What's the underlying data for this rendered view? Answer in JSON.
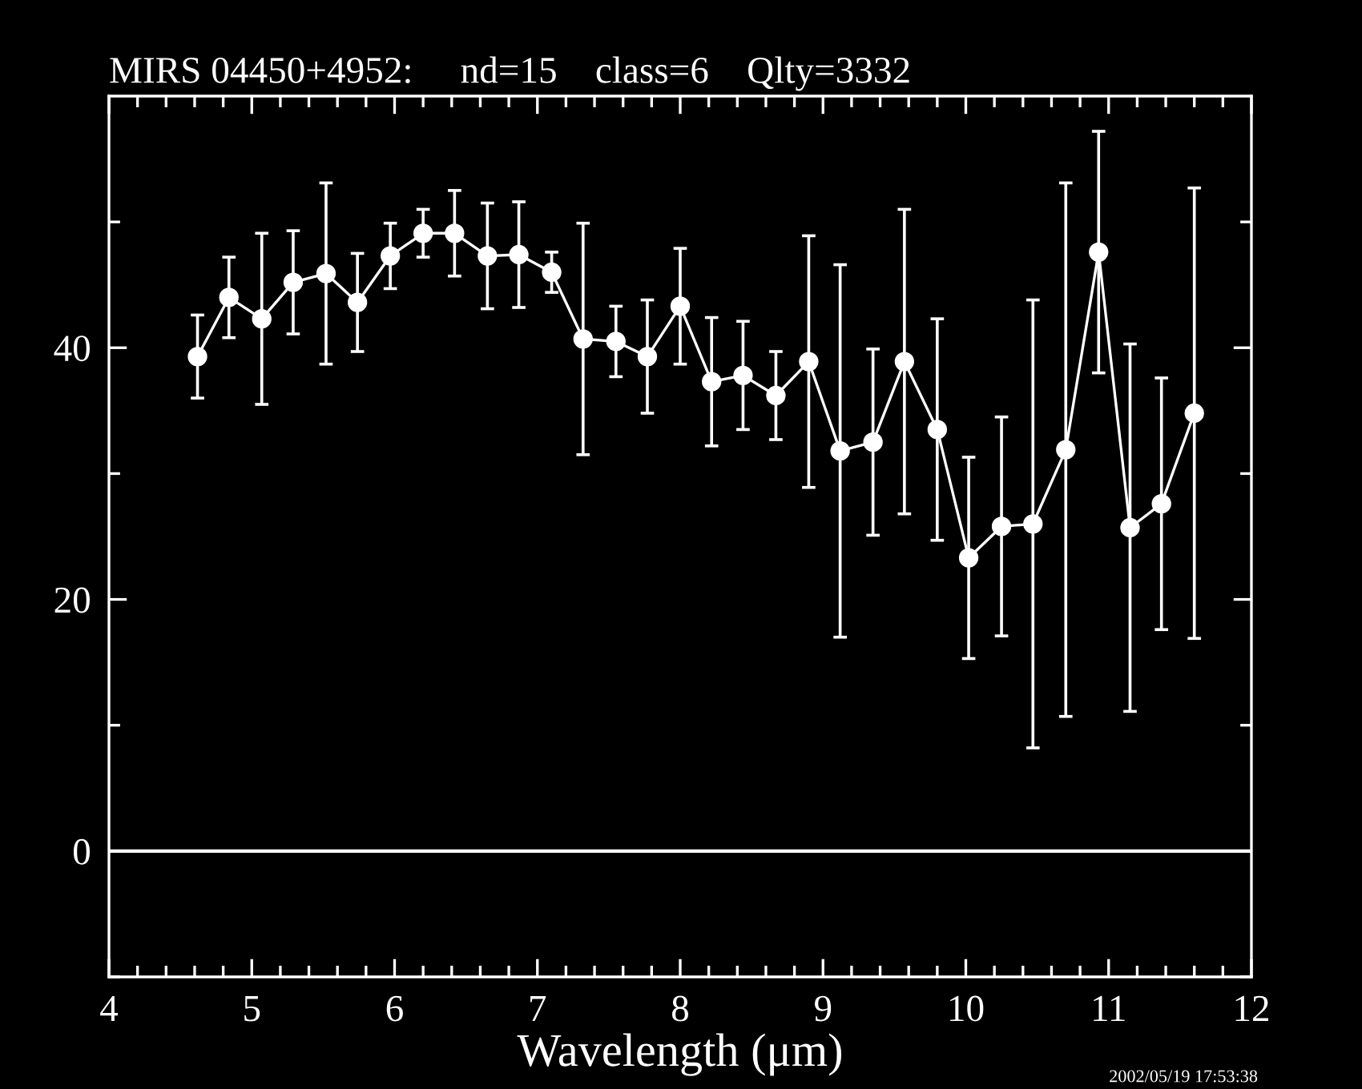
{
  "chart_data": {
    "type": "line",
    "title": "MIRS 04450+4952:     nd=15    class=6    Qlty=3332",
    "xlabel": "Wavelength (μm)",
    "x": [
      4.62,
      4.84,
      5.07,
      5.29,
      5.52,
      5.74,
      5.97,
      6.2,
      6.42,
      6.65,
      6.87,
      7.1,
      7.32,
      7.55,
      7.77,
      8.0,
      8.22,
      8.44,
      8.67,
      8.9,
      9.12,
      9.35,
      9.57,
      9.8,
      10.02,
      10.25,
      10.47,
      10.7,
      10.93,
      11.15,
      11.37,
      11.6
    ],
    "series": [
      {
        "color": "#ffffff",
        "values": [
          39.3,
          44.0,
          42.3,
          45.2,
          45.9,
          43.6,
          47.3,
          49.1,
          49.1,
          47.3,
          47.4,
          46.0,
          40.7,
          40.5,
          39.3,
          43.3,
          37.3,
          37.8,
          36.2,
          38.9,
          31.8,
          32.5,
          38.9,
          33.5,
          23.3,
          25.8,
          26.0,
          31.9,
          47.6,
          25.7,
          27.6,
          34.8
        ],
        "errors": [
          3.3,
          3.2,
          6.8,
          4.1,
          7.2,
          3.9,
          2.6,
          1.9,
          3.4,
          4.2,
          4.2,
          1.6,
          9.2,
          2.8,
          4.5,
          4.6,
          5.1,
          4.3,
          3.5,
          10.0,
          14.8,
          7.4,
          12.1,
          8.8,
          8.0,
          8.7,
          17.8,
          21.2,
          9.6,
          14.6,
          10.0,
          17.9
        ]
      }
    ],
    "xlim": [
      4,
      12
    ],
    "ylim": [
      -10,
      60
    ],
    "xticks": [
      4,
      {
        "value": 4.2,
        "label": null
      },
      {
        "value": 4.4,
        "label": null
      },
      {
        "value": 4.6,
        "label": null
      },
      {
        "value": 4.8,
        "label": null
      },
      5,
      {
        "value": 5.2,
        "label": null
      },
      {
        "value": 5.4,
        "label": null
      },
      {
        "value": 5.6,
        "label": null
      },
      {
        "value": 5.8,
        "label": null
      },
      6,
      {
        "value": 6.2,
        "label": null
      },
      {
        "value": 6.4,
        "label": null
      },
      {
        "value": 6.6,
        "label": null
      },
      {
        "value": 6.8,
        "label": null
      },
      7,
      {
        "value": 7.2,
        "label": null
      },
      {
        "value": 7.4,
        "label": null
      },
      {
        "value": 7.6,
        "label": null
      },
      {
        "value": 7.8,
        "label": null
      },
      8,
      {
        "value": 8.2,
        "label": null
      },
      {
        "value": 8.4,
        "label": null
      },
      {
        "value": 8.6,
        "label": null
      },
      {
        "value": 8.8,
        "label": null
      },
      9,
      {
        "value": 9.2,
        "label": null
      },
      {
        "value": 9.4,
        "label": null
      },
      {
        "value": 9.6,
        "label": null
      },
      {
        "value": 9.8,
        "label": null
      },
      10,
      {
        "value": 10.2,
        "label": null
      },
      {
        "value": 10.4,
        "label": null
      },
      {
        "value": 10.6,
        "label": null
      },
      {
        "value": 10.8,
        "label": null
      },
      11,
      {
        "value": 11.2,
        "label": null
      },
      {
        "value": 11.4,
        "label": null
      },
      {
        "value": 11.6,
        "label": null
      },
      {
        "value": 11.8,
        "label": null
      },
      12
    ],
    "yticks": [
      {
        "value": -10,
        "label": null
      },
      0,
      {
        "value": 10,
        "label": null
      },
      20,
      {
        "value": 30,
        "label": null
      },
      40,
      {
        "value": 50,
        "label": null
      }
    ],
    "ref_lines": [
      {
        "axis": "y",
        "value": 0,
        "color": "#ffffff"
      }
    ],
    "annotations": [
      "2002/05/19 17:53:38"
    ],
    "marker": "circle",
    "line_style": "solid",
    "grid": false,
    "legend": false
  }
}
